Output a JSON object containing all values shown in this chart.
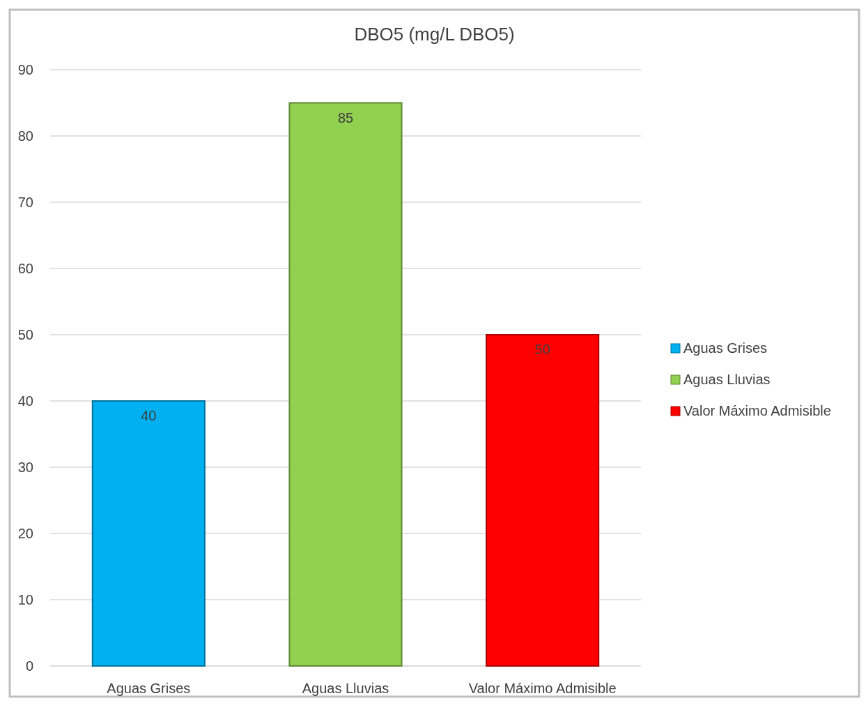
{
  "chart_data": {
    "type": "bar",
    "title": "DBO5 (mg/L DBO5)",
    "categories": [
      "Aguas Grises",
      "Aguas Lluvias",
      "Valor Máximo Admisible"
    ],
    "series": [
      {
        "name": "Aguas Grises",
        "color": "#00b0f0",
        "values": [
          40,
          null,
          null
        ]
      },
      {
        "name": "Aguas Lluvias",
        "color": "#92d050",
        "values": [
          null,
          85,
          null
        ]
      },
      {
        "name": "Valor Máximo Admisible",
        "color": "#ff0000",
        "values": [
          null,
          null,
          50
        ]
      }
    ],
    "stacked": true,
    "ylim": [
      0,
      90
    ],
    "yticks": [
      0,
      10,
      20,
      30,
      40,
      50,
      60,
      70,
      80,
      90
    ],
    "grid": "y",
    "legend": "right",
    "data_labels": true
  }
}
